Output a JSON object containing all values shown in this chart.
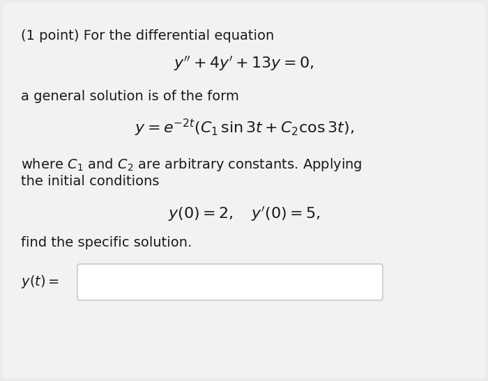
{
  "bg_color": "#ebebeb",
  "card_color": "#f2f2f2",
  "text_color": "#1a1a1a",
  "line1": "(1 point) For the differential equation",
  "eq1": "$y'' + 4y' + 13y = 0,$",
  "line2": "a general solution is of the form",
  "eq2": "$y = e^{-2t}(C_1\\,\\sin 3t + C_2\\cos 3t),$",
  "line3_part1": "where $C_1$ and $C_2$ are arbitrary constants. Applying",
  "line3_part2": "the initial conditions",
  "eq3": "$y(0) = 2, \\quad y'(0) = 5,$",
  "line4": "find the specific solution.",
  "label": "$y(t) =$",
  "font_size_text": 14,
  "font_size_eq": 16,
  "fig_width": 7.0,
  "fig_height": 5.47,
  "dpi": 100
}
